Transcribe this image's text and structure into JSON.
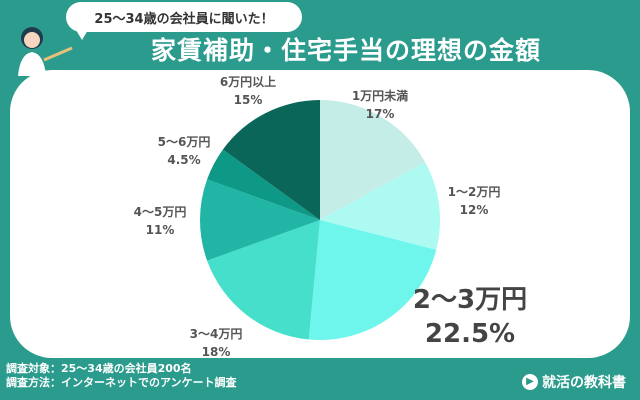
{
  "header": {
    "bubble_text": "25〜34歳の会社員に聞いた！",
    "title": "家賃補助・住宅手当の理想の金額"
  },
  "footer": {
    "line1": "調査対象：25〜34歳の会社員200名",
    "line2": "調査方法：インターネットでのアンケート調査"
  },
  "brand": {
    "name": "就活の教科書",
    "logo_icon": "chat-bubble-icon"
  },
  "colors": {
    "background": "#2a9b8c",
    "panel": "#ffffff"
  },
  "chart_data": {
    "type": "pie",
    "title": "家賃補助・住宅手当の理想の金額",
    "slices": [
      {
        "label": "1万円未満",
        "value": 17,
        "value_text": "17%",
        "color": "#c3ede6"
      },
      {
        "label": "1〜2万円",
        "value": 12,
        "value_text": "12%",
        "color": "#adfaf3"
      },
      {
        "label": "2〜3万円",
        "value": 22.5,
        "value_text": "22.5%",
        "color": "#6ff6ec",
        "highlight": true
      },
      {
        "label": "3〜4万円",
        "value": 18,
        "value_text": "18%",
        "color": "#45dfcc"
      },
      {
        "label": "4〜5万円",
        "value": 11,
        "value_text": "11%",
        "color": "#20b5a5"
      },
      {
        "label": "5〜6万円",
        "value": 4.5,
        "value_text": "4.5%",
        "color": "#0e9987"
      },
      {
        "label": "6万円以上",
        "value": 15,
        "value_text": "15%",
        "color": "#0b665a"
      }
    ],
    "start_angle_deg": 0,
    "direction": "clockwise"
  }
}
